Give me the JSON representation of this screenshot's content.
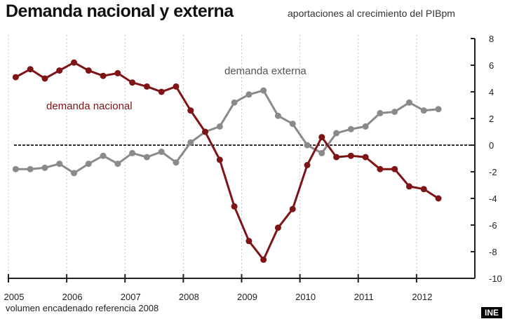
{
  "header": {
    "title": "Demanda nacional y externa",
    "subtitle": "aportaciones al crecimiento del PIBpm"
  },
  "footer": {
    "note": "volumen encadenado referencia 2008",
    "source": "INE"
  },
  "chart_data": {
    "type": "line",
    "title": "Demanda nacional y externa",
    "subtitle": "aportaciones al crecimiento del PIBpm",
    "xlabel": "",
    "ylabel": "",
    "x_ticks": [
      "2005",
      "2006",
      "2007",
      "2008",
      "2009",
      "2010",
      "2011",
      "2012"
    ],
    "x_range": [
      2005,
      2013
    ],
    "y_ticks": [
      "8",
      "6",
      "4",
      "2",
      "0",
      "-2",
      "-4",
      "-6",
      "-8",
      "-10"
    ],
    "ylim": [
      -10,
      8
    ],
    "y_axis_side": "right",
    "grid": "vertical dotted at years",
    "reference_line": 0,
    "x": [
      "2005Q1",
      "2005Q2",
      "2005Q3",
      "2005Q4",
      "2006Q1",
      "2006Q2",
      "2006Q3",
      "2006Q4",
      "2007Q1",
      "2007Q2",
      "2007Q3",
      "2007Q4",
      "2008Q1",
      "2008Q2",
      "2008Q3",
      "2008Q4",
      "2009Q1",
      "2009Q2",
      "2009Q3",
      "2009Q4",
      "2010Q1",
      "2010Q2",
      "2010Q3",
      "2010Q4",
      "2011Q1",
      "2011Q2",
      "2011Q3",
      "2011Q4",
      "2012Q1",
      "2012Q2"
    ],
    "series": [
      {
        "name": "demanda nacional",
        "color": "#7f1416",
        "values": [
          5.1,
          5.7,
          5.0,
          5.6,
          6.2,
          5.6,
          5.2,
          5.4,
          4.7,
          4.4,
          4.0,
          4.4,
          2.6,
          1.0,
          -1.1,
          -4.6,
          -7.2,
          -8.6,
          -6.2,
          -4.8,
          -1.5,
          0.6,
          -0.9,
          -0.8,
          -0.9,
          -1.8,
          -1.8,
          -3.1,
          -3.3,
          -4.0
        ]
      },
      {
        "name": "demanda externa",
        "color": "#8a8a8a",
        "values": [
          -1.8,
          -1.8,
          -1.7,
          -1.4,
          -2.1,
          -1.4,
          -0.8,
          -1.4,
          -0.6,
          -0.9,
          -0.5,
          -1.3,
          0.2,
          1.0,
          1.4,
          3.2,
          3.8,
          4.1,
          2.2,
          1.6,
          0.0,
          -0.6,
          0.9,
          1.2,
          1.4,
          2.4,
          2.5,
          3.2,
          2.6,
          2.7
        ]
      }
    ]
  }
}
